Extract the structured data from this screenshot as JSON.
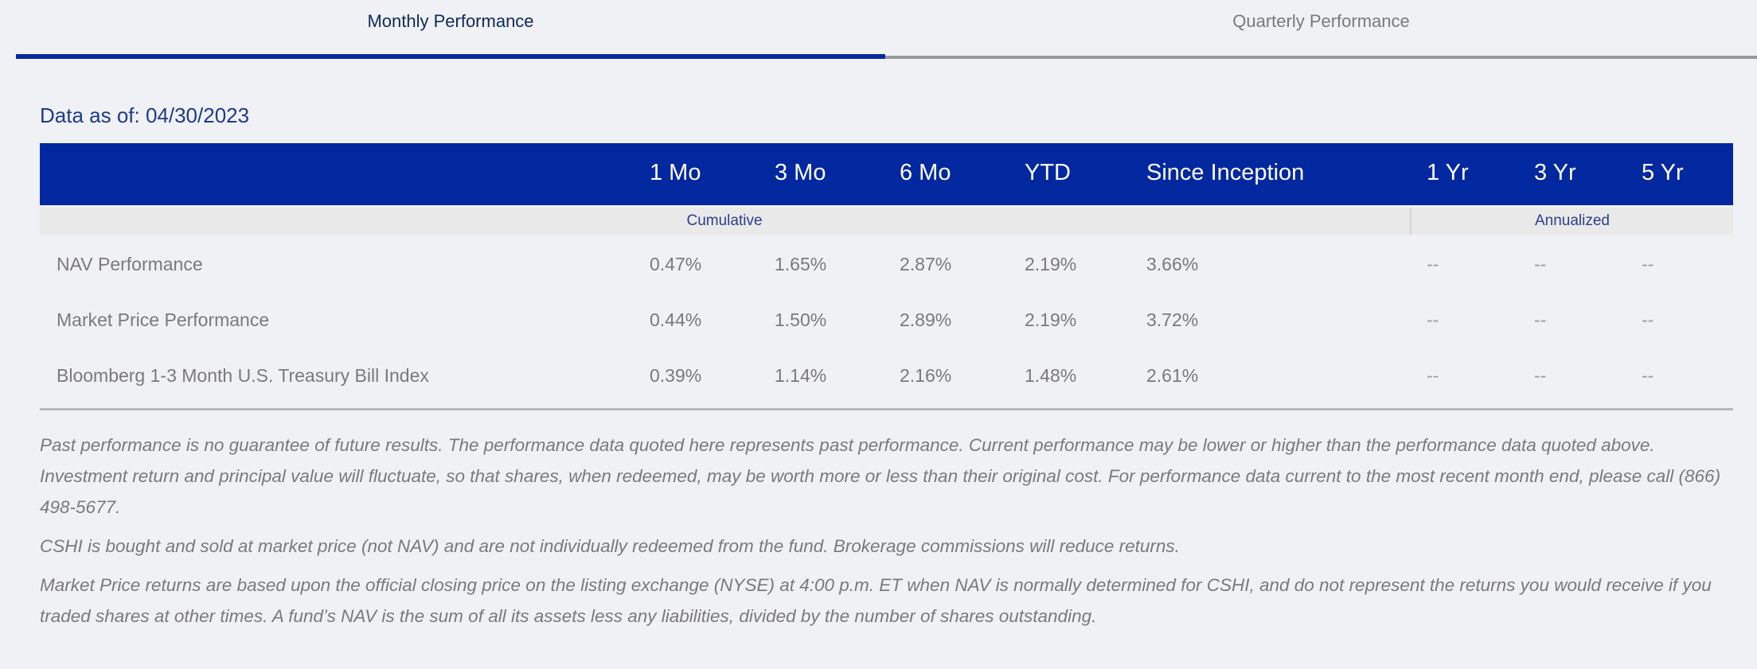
{
  "tabs": [
    {
      "label": "Monthly Performance",
      "active": true
    },
    {
      "label": "Quarterly Performance",
      "active": false
    }
  ],
  "as_of": "Data as of: 04/30/2023",
  "table": {
    "columns": [
      "1 Mo",
      "3 Mo",
      "6 Mo",
      "YTD",
      "Since Inception",
      "1 Yr",
      "3 Yr",
      "5 Yr"
    ],
    "groups": {
      "cumulative": "Cumulative",
      "annualized": "Annualized"
    },
    "rows": [
      {
        "label": "NAV Performance",
        "values": [
          "0.47%",
          "1.65%",
          "2.87%",
          "2.19%",
          "3.66%",
          "--",
          "--",
          "--"
        ]
      },
      {
        "label": "Market Price Performance",
        "values": [
          "0.44%",
          "1.50%",
          "2.89%",
          "2.19%",
          "3.72%",
          "--",
          "--",
          "--"
        ]
      },
      {
        "label": "Bloomberg 1-3 Month U.S. Treasury Bill Index",
        "values": [
          "0.39%",
          "1.14%",
          "2.16%",
          "1.48%",
          "2.61%",
          "--",
          "--",
          "--"
        ]
      }
    ]
  },
  "disclaimers": [
    "Past performance is no guarantee of future results. The performance data quoted here represents past performance. Current performance may be lower or higher than the performance data quoted above. Investment return and principal value will fluctuate, so that shares, when redeemed, may be worth more or less than their original cost. For performance data current to the most recent month end, please call (866) 498-5677.",
    "CSHI is bought and sold at market price (not NAV) and are not individually redeemed from the fund. Brokerage commissions will reduce returns.",
    "Market Price returns are based upon the official closing price on the listing exchange (NYSE) at 4:00 p.m. ET when NAV is normally determined for CSHI, and do not represent the returns you would receive if you traded shares at other times. A fund’s NAV is the sum of all its assets less any liabilities, divided by the number of shares outstanding."
  ],
  "colors": {
    "header_bg": "#0228a0",
    "active_tab_underline": "#0a2a9c",
    "as_of_text": "#1e3a8a"
  }
}
